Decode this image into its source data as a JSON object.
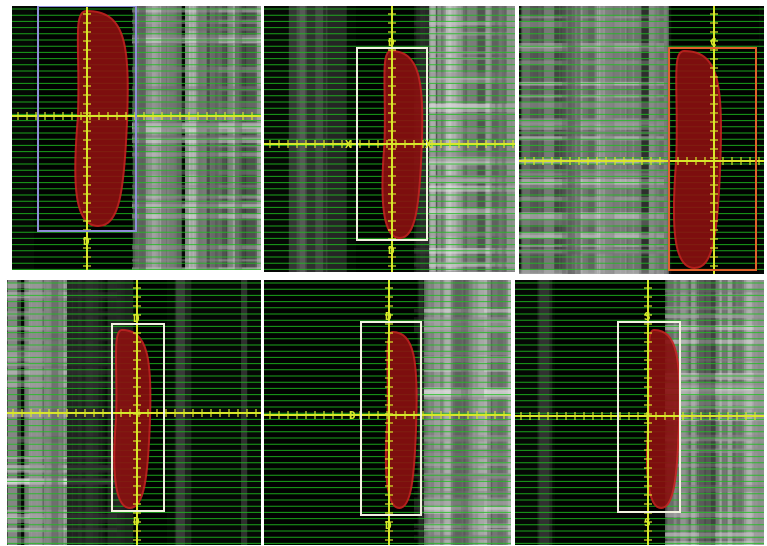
{
  "colors": {
    "background": "#ffffff",
    "scan_lines": "#1fbf1f",
    "crosshair": "#d8e82a",
    "organ_fill": "#8b1010",
    "organ_edge": "#c82020",
    "box_blue": "#8d8fd6",
    "box_white": "#f2f2e0",
    "box_orange": "#e0622a"
  },
  "panels": [
    {
      "id": "top-left",
      "box_color": "box_blue",
      "marker_top": "",
      "marker_bottom": "D",
      "marker_left": "",
      "marker_right": ""
    },
    {
      "id": "top-middle",
      "box_color": "box_white",
      "marker_top": "D",
      "marker_bottom": "D",
      "marker_left": "X",
      "marker_right": "X"
    },
    {
      "id": "top-right",
      "box_color": "box_orange",
      "marker_top": "C",
      "marker_bottom": "",
      "marker_left": "",
      "marker_right": ""
    },
    {
      "id": "bottom-left",
      "box_color": "box_white",
      "marker_top": "D",
      "marker_bottom": "D",
      "marker_left": "",
      "marker_right": ""
    },
    {
      "id": "bottom-middle",
      "box_color": "box_white",
      "marker_top": "D",
      "marker_bottom": "D",
      "marker_left": "D",
      "marker_right": ""
    },
    {
      "id": "bottom-right",
      "box_color": "box_white",
      "marker_top": "S",
      "marker_bottom": "S",
      "marker_left": "",
      "marker_right": ""
    }
  ]
}
